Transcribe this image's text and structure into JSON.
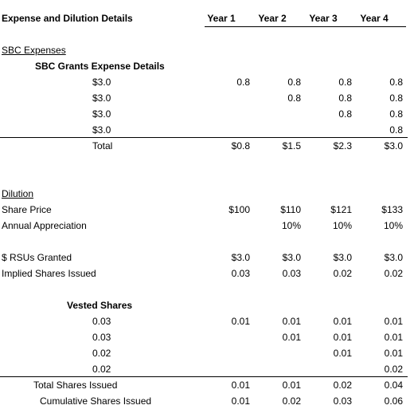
{
  "header": {
    "title": "Expense and Dilution Details",
    "years": [
      "Year 1",
      "Year 2",
      "Year 3",
      "Year 4"
    ]
  },
  "sbc": {
    "section_title": "SBC Expenses",
    "subtitle": "SBC Grants Expense Details",
    "grants": [
      "$3.0",
      "$3.0",
      "$3.0",
      "$3.0"
    ],
    "matrix": [
      [
        "0.8",
        "0.8",
        "0.8",
        "0.8"
      ],
      [
        "",
        "0.8",
        "0.8",
        "0.8"
      ],
      [
        "",
        "",
        "0.8",
        "0.8"
      ],
      [
        "",
        "",
        "",
        "0.8"
      ]
    ],
    "total_label": "Total",
    "totals": [
      "$0.8",
      "$1.5",
      "$2.3",
      "$3.0"
    ]
  },
  "dilution": {
    "section_title": "Dilution",
    "share_price_label": "Share Price",
    "share_prices": [
      "$100",
      "$110",
      "$121",
      "$133"
    ],
    "appreciation_label": "Annual Appreciation",
    "appreciation": [
      "",
      "10%",
      "10%",
      "10%"
    ],
    "rsu_label": "$ RSUs Granted",
    "rsu_values": [
      "$3.0",
      "$3.0",
      "$3.0",
      "$3.0"
    ],
    "implied_label": "Implied Shares Issued",
    "implied_values": [
      "0.03",
      "0.03",
      "0.02",
      "0.02"
    ]
  },
  "vested": {
    "title": "Vested Shares",
    "grants": [
      "0.03",
      "0.03",
      "0.02",
      "0.02"
    ],
    "matrix": [
      [
        "0.01",
        "0.01",
        "0.01",
        "0.01"
      ],
      [
        "",
        "0.01",
        "0.01",
        "0.01"
      ],
      [
        "",
        "",
        "0.01",
        "0.01"
      ],
      [
        "",
        "",
        "",
        "0.02"
      ]
    ],
    "total_label": "Total Shares Issued",
    "totals": [
      "0.01",
      "0.01",
      "0.02",
      "0.04"
    ],
    "cumulative_label": "Cumulative Shares Issued",
    "cumulative": [
      "0.01",
      "0.02",
      "0.03",
      "0.06"
    ]
  }
}
